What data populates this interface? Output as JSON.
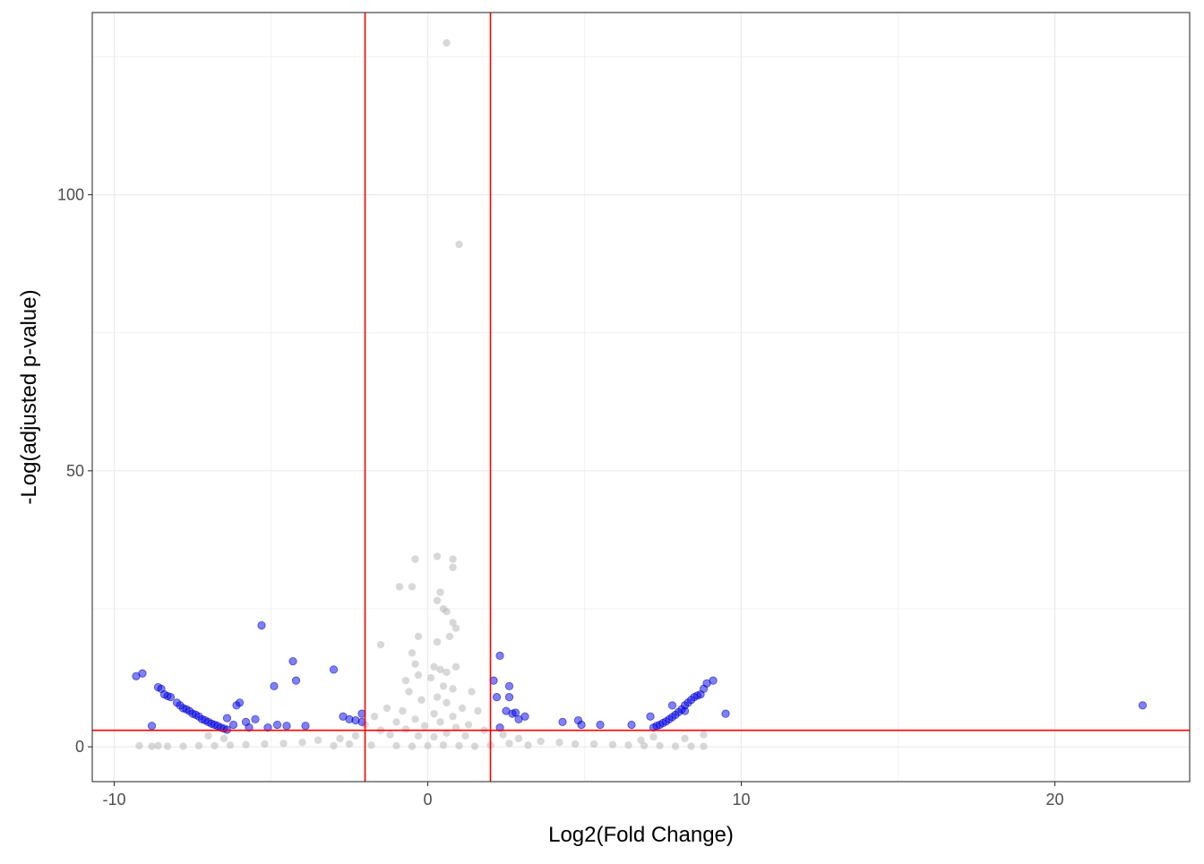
{
  "chart_data": {
    "type": "scatter",
    "title": "",
    "xlabel": "Log2(Fold Change)",
    "ylabel": "-Log(adjusted p-value)",
    "xlim": [
      -10.7,
      24.3
    ],
    "ylim": [
      -6.3,
      133
    ],
    "x_ticks": [
      -10,
      0,
      10,
      20
    ],
    "x_tick_labels": [
      "-10",
      "0",
      "10",
      "20"
    ],
    "y_ticks": [
      0,
      50,
      100
    ],
    "y_tick_labels": [
      "0",
      "50",
      "100"
    ],
    "grid": true,
    "legend": "none",
    "thresholds": {
      "log2fc": [
        -2,
        2
      ],
      "neg_log_padj": 3
    },
    "colors": {
      "significant": "#0000ff",
      "not_significant": "#bebebe",
      "threshold_line": "#ff0000",
      "grid_major": "#ebebeb",
      "panel_border": "#333333"
    },
    "series": [
      {
        "significant": false,
        "points": [
          [
            0.6,
            127.5
          ],
          [
            1.0,
            91.0
          ],
          [
            -0.4,
            34.0
          ],
          [
            0.3,
            34.5
          ],
          [
            0.8,
            34.0
          ],
          [
            0.8,
            32.5
          ],
          [
            -0.9,
            29.0
          ],
          [
            -0.5,
            29.0
          ],
          [
            0.4,
            28.0
          ],
          [
            0.3,
            26.5
          ],
          [
            0.5,
            25.0
          ],
          [
            0.6,
            24.5
          ],
          [
            0.8,
            22.5
          ],
          [
            0.9,
            21.5
          ],
          [
            0.7,
            20.0
          ],
          [
            -0.3,
            20.0
          ],
          [
            0.3,
            19.0
          ],
          [
            -1.5,
            18.5
          ],
          [
            -0.5,
            17.0
          ],
          [
            -0.4,
            15.0
          ],
          [
            0.2,
            14.5
          ],
          [
            0.4,
            14.0
          ],
          [
            0.6,
            13.5
          ],
          [
            -0.3,
            13.0
          ],
          [
            0.9,
            14.5
          ],
          [
            -0.7,
            12.0
          ],
          [
            0.1,
            12.5
          ],
          [
            0.5,
            11.0
          ],
          [
            0.8,
            10.5
          ],
          [
            -0.6,
            10.0
          ],
          [
            0.3,
            9.0
          ],
          [
            1.4,
            10.0
          ],
          [
            -0.2,
            8.5
          ],
          [
            0.6,
            8.0
          ],
          [
            -1.3,
            7.0
          ],
          [
            -0.8,
            6.5
          ],
          [
            0.2,
            6.0
          ],
          [
            1.1,
            7.0
          ],
          [
            -1.7,
            5.5
          ],
          [
            0.8,
            5.5
          ],
          [
            -0.4,
            5.0
          ],
          [
            1.6,
            6.5
          ],
          [
            -1.0,
            4.5
          ],
          [
            0.4,
            4.5
          ],
          [
            1.3,
            4.0
          ],
          [
            -2.0,
            4.0
          ],
          [
            -0.1,
            3.8
          ],
          [
            0.9,
            3.5
          ],
          [
            -1.5,
            3.0
          ],
          [
            1.8,
            3.0
          ],
          [
            -0.7,
            3.2
          ],
          [
            0.6,
            2.5
          ],
          [
            -1.2,
            2.2
          ],
          [
            1.2,
            2.0
          ],
          [
            -0.3,
            2.0
          ],
          [
            0.2,
            1.8
          ],
          [
            -2.3,
            2.0
          ],
          [
            2.4,
            2.2
          ],
          [
            -2.8,
            1.5
          ],
          [
            2.9,
            1.5
          ],
          [
            -3.5,
            1.2
          ],
          [
            3.6,
            1.0
          ],
          [
            -4.0,
            0.8
          ],
          [
            4.2,
            0.8
          ],
          [
            -4.6,
            0.6
          ],
          [
            4.7,
            0.5
          ],
          [
            -5.2,
            0.5
          ],
          [
            5.3,
            0.5
          ],
          [
            -5.8,
            0.4
          ],
          [
            5.9,
            0.4
          ],
          [
            -6.3,
            0.3
          ],
          [
            6.4,
            0.3
          ],
          [
            -6.8,
            0.2
          ],
          [
            6.9,
            0.2
          ],
          [
            -7.3,
            0.2
          ],
          [
            7.4,
            0.2
          ],
          [
            -7.8,
            0.1
          ],
          [
            7.9,
            0.1
          ],
          [
            -8.3,
            0.1
          ],
          [
            8.4,
            0.1
          ],
          [
            -8.8,
            0.1
          ],
          [
            8.8,
            0.1
          ],
          [
            -9.2,
            0.2
          ],
          [
            -8.6,
            0.2
          ],
          [
            -1.8,
            0.3
          ],
          [
            -1.0,
            0.2
          ],
          [
            -0.5,
            0.1
          ],
          [
            0.0,
            0.2
          ],
          [
            0.5,
            0.3
          ],
          [
            1.0,
            0.2
          ],
          [
            1.5,
            0.1
          ],
          [
            2.0,
            0.3
          ],
          [
            -3.0,
            0.2
          ],
          [
            3.2,
            0.3
          ],
          [
            -2.5,
            0.5
          ],
          [
            2.6,
            0.6
          ],
          [
            -6.5,
            1.5
          ],
          [
            -7.0,
            2.0
          ],
          [
            7.2,
            1.8
          ],
          [
            6.8,
            1.2
          ],
          [
            8.2,
            1.5
          ],
          [
            8.8,
            2.2
          ]
        ]
      },
      {
        "significant": true,
        "points": [
          [
            -9.3,
            12.8
          ],
          [
            -9.1,
            13.3
          ],
          [
            -8.8,
            3.8
          ],
          [
            -8.6,
            10.8
          ],
          [
            -8.5,
            10.5
          ],
          [
            -8.4,
            9.5
          ],
          [
            -8.3,
            9.2
          ],
          [
            -8.2,
            9.0
          ],
          [
            -8.0,
            8.0
          ],
          [
            -7.9,
            7.5
          ],
          [
            -7.8,
            7.0
          ],
          [
            -7.7,
            6.8
          ],
          [
            -7.6,
            6.5
          ],
          [
            -7.5,
            6.0
          ],
          [
            -7.4,
            5.8
          ],
          [
            -7.3,
            5.5
          ],
          [
            -7.2,
            5.0
          ],
          [
            -7.1,
            4.8
          ],
          [
            -7.0,
            4.5
          ],
          [
            -6.9,
            4.2
          ],
          [
            -6.8,
            4.0
          ],
          [
            -6.7,
            3.8
          ],
          [
            -6.6,
            3.5
          ],
          [
            -6.5,
            3.3
          ],
          [
            -6.4,
            3.1
          ],
          [
            -6.4,
            5.2
          ],
          [
            -6.2,
            4.0
          ],
          [
            -5.8,
            4.5
          ],
          [
            -5.7,
            3.5
          ],
          [
            -6.1,
            7.5
          ],
          [
            -6.0,
            8.0
          ],
          [
            -5.5,
            5.0
          ],
          [
            -5.3,
            22.0
          ],
          [
            -5.1,
            3.5
          ],
          [
            -4.9,
            11.0
          ],
          [
            -4.8,
            4.0
          ],
          [
            -4.5,
            3.8
          ],
          [
            -4.3,
            15.5
          ],
          [
            -4.2,
            12.0
          ],
          [
            -3.9,
            3.8
          ],
          [
            -3.0,
            14.0
          ],
          [
            -2.7,
            5.5
          ],
          [
            -2.5,
            5.0
          ],
          [
            -2.3,
            4.8
          ],
          [
            -2.1,
            6.0
          ],
          [
            -2.1,
            4.5
          ],
          [
            2.1,
            12.0
          ],
          [
            2.2,
            9.0
          ],
          [
            2.3,
            3.5
          ],
          [
            2.3,
            16.5
          ],
          [
            2.5,
            6.5
          ],
          [
            2.6,
            11.0
          ],
          [
            2.6,
            9.0
          ],
          [
            2.7,
            6.0
          ],
          [
            2.8,
            6.2
          ],
          [
            2.9,
            5.0
          ],
          [
            3.1,
            5.5
          ],
          [
            4.3,
            4.5
          ],
          [
            4.8,
            4.8
          ],
          [
            4.9,
            4.0
          ],
          [
            5.5,
            4.0
          ],
          [
            6.5,
            4.0
          ],
          [
            7.1,
            5.5
          ],
          [
            7.2,
            3.5
          ],
          [
            7.3,
            3.8
          ],
          [
            7.4,
            4.0
          ],
          [
            7.5,
            4.3
          ],
          [
            7.6,
            4.6
          ],
          [
            7.7,
            5.0
          ],
          [
            7.8,
            5.4
          ],
          [
            7.9,
            5.8
          ],
          [
            8.0,
            6.3
          ],
          [
            8.1,
            6.8
          ],
          [
            8.2,
            7.5
          ],
          [
            8.3,
            8.0
          ],
          [
            8.4,
            8.5
          ],
          [
            8.5,
            9.0
          ],
          [
            8.6,
            9.3
          ],
          [
            8.7,
            9.5
          ],
          [
            8.8,
            10.5
          ],
          [
            8.9,
            11.5
          ],
          [
            9.1,
            12.0
          ],
          [
            9.5,
            6.0
          ],
          [
            7.8,
            7.5
          ],
          [
            8.2,
            6.5
          ],
          [
            22.8,
            7.5
          ]
        ]
      }
    ]
  }
}
